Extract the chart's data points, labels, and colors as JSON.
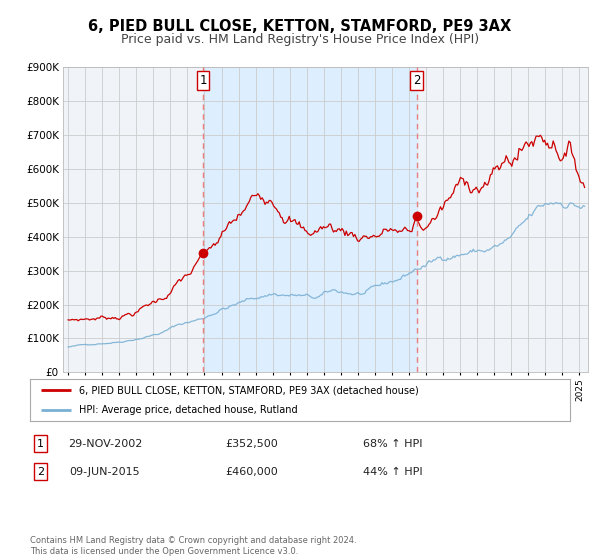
{
  "title": "6, PIED BULL CLOSE, KETTON, STAMFORD, PE9 3AX",
  "subtitle": "Price paid vs. HM Land Registry's House Price Index (HPI)",
  "ylim": [
    0,
    900000
  ],
  "yticks": [
    0,
    100000,
    200000,
    300000,
    400000,
    500000,
    600000,
    700000,
    800000,
    900000
  ],
  "ytick_labels": [
    "£0",
    "£100K",
    "£200K",
    "£300K",
    "£400K",
    "£500K",
    "£600K",
    "£700K",
    "£800K",
    "£900K"
  ],
  "xlim_start": 1994.7,
  "xlim_end": 2025.5,
  "red_color": "#cc0000",
  "blue_color": "#7ab0d4",
  "vline_color": "#e88080",
  "shade_color": "#ddeeff",
  "background_color": "#ffffff",
  "grid_color": "#cccccc",
  "axes_bg": "#f0f4f8",
  "legend_label_red": "6, PIED BULL CLOSE, KETTON, STAMFORD, PE9 3AX (detached house)",
  "legend_label_blue": "HPI: Average price, detached house, Rutland",
  "transaction1_date": "29-NOV-2002",
  "transaction1_price": "£352,500",
  "transaction1_pct": "68% ↑ HPI",
  "transaction2_date": "09-JUN-2015",
  "transaction2_price": "£460,000",
  "transaction2_pct": "44% ↑ HPI",
  "vline1_x": 2002.91,
  "vline2_x": 2015.44,
  "marker1_x": 2002.91,
  "marker1_y": 352500,
  "marker2_x": 2015.44,
  "marker2_y": 460000,
  "footnote": "Contains HM Land Registry data © Crown copyright and database right 2024.\nThis data is licensed under the Open Government Licence v3.0.",
  "title_fontsize": 10.5,
  "subtitle_fontsize": 9
}
